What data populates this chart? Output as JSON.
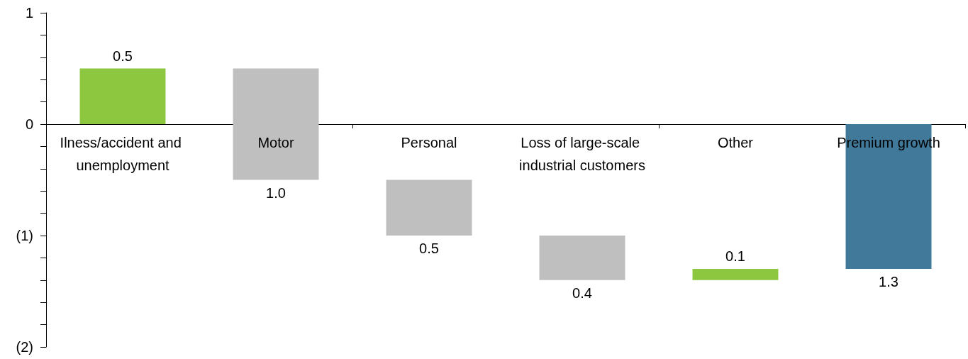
{
  "chart_data": {
    "type": "bar",
    "categories": [
      "Ilness/accident and unemployment",
      "Motor",
      "Personal",
      "Loss of large-scale industrial customers",
      "Other",
      "Premium growth"
    ],
    "values": [
      0.5,
      -1.0,
      -0.5,
      -0.4,
      0.1,
      -1.3
    ],
    "base": [
      0,
      0.5,
      -0.5,
      -1.0,
      -1.4,
      0
    ],
    "colors": [
      "#8dc63f",
      "#bfbfbf",
      "#bfbfbf",
      "#bfbfbf",
      "#8dc63f",
      "#41799a"
    ],
    "value_labels": [
      "0.5",
      "1.0",
      "0.5",
      "0.4",
      "0.1",
      "1.3"
    ],
    "ylim": [
      -2,
      1
    ],
    "yticks": [
      1,
      {
        "value": 0.8,
        "label": null
      },
      {
        "value": 0.6,
        "label": null
      },
      {
        "value": 0.4,
        "label": null
      },
      {
        "value": 0.2,
        "label": null
      },
      0,
      {
        "value": -0.2,
        "label": null
      },
      {
        "value": -0.4,
        "label": null
      },
      {
        "value": -0.6,
        "label": null
      },
      {
        "value": -0.8,
        "label": null
      },
      {
        "value": -1,
        "label": "(1)"
      },
      {
        "value": -1.2,
        "label": null
      },
      {
        "value": -1.4,
        "label": null
      },
      {
        "value": -1.6,
        "label": null
      },
      {
        "value": -1.8,
        "label": null
      },
      {
        "value": -2,
        "label": "(2)"
      }
    ]
  }
}
